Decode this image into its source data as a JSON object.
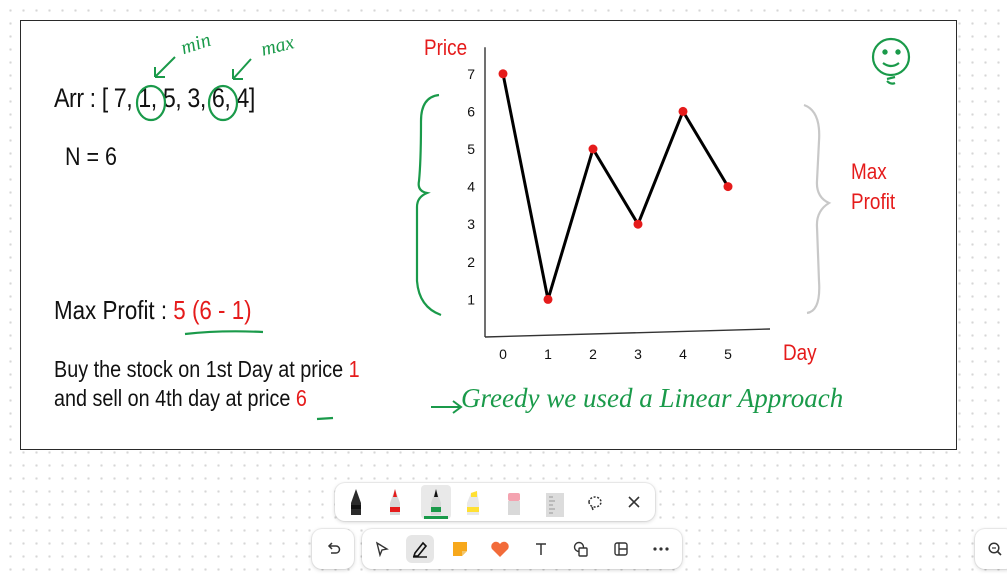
{
  "board": {
    "array_line": "Arr : [ 7, 1, 5, 3, 6, 4]",
    "n_line": "N = 6",
    "max_profit_label": "Max Profit :",
    "max_profit_value": "5 (6 - 1)",
    "buy_line_text": "Buy the stock on 1st Day at price",
    "buy_price": "1",
    "sell_line_text": "and sell on 4th day at price",
    "sell_price": "6",
    "annotation_min": "min",
    "annotation_max": "max",
    "greedy_note": "Greedy we used a Linear Approach",
    "side_label_line1": "Max",
    "side_label_line2": "Profit"
  },
  "chart_data": {
    "type": "line",
    "title": "",
    "xlabel": "Day",
    "ylabel": "Price",
    "x": [
      0,
      1,
      2,
      3,
      4,
      5
    ],
    "series": [
      {
        "values": [
          7,
          1,
          5,
          3,
          6,
          4
        ]
      }
    ],
    "xticks": [
      "0",
      "1",
      "2",
      "3",
      "4",
      "5"
    ],
    "yticks": [
      "1",
      "2",
      "3",
      "4",
      "5",
      "6",
      "7"
    ],
    "ylim": [
      0,
      7.6
    ],
    "line_color": "#000000",
    "point_color": "#e51b1b",
    "grid": false
  },
  "toolbar": {
    "pens": [
      "black-marker",
      "red-marker",
      "green-marker",
      "yellow-highlighter",
      "eraser",
      "ruler"
    ],
    "selected_pen": "green-marker",
    "lasso": "lasso-icon",
    "close": "close-icon",
    "undo": "undo-icon",
    "tools": [
      "select-pointer-icon",
      "pen-icon",
      "sticky-note-icon",
      "heart-reaction-icon",
      "text-icon",
      "shapes-icon",
      "template-icon",
      "more-icon"
    ],
    "zoom": "zoom-icon"
  },
  "colors": {
    "red": "#e51b1b",
    "green": "#1a9a4a",
    "black": "#111111"
  }
}
